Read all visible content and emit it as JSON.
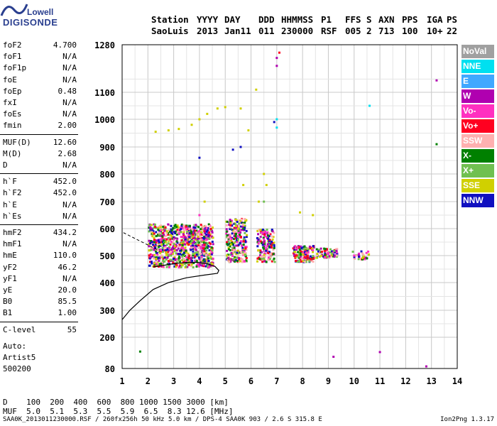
{
  "logo": {
    "line1": "Lowell",
    "line2": "DIGISONDE"
  },
  "header": {
    "labels": [
      "Station",
      "YYYY",
      "DAY",
      "DDD",
      "HHMMSS",
      "P1",
      "FFS",
      "S",
      "AXN",
      "PPS",
      "IGA",
      "PS"
    ],
    "values": [
      "SaoLuis",
      "2013",
      "Jan11",
      "011",
      "230000",
      "RSF",
      "005",
      "2",
      "713",
      "100",
      "10+",
      "22"
    ]
  },
  "params": [
    [
      {
        "k": "foF2",
        "v": "4.700"
      },
      {
        "k": "foF1",
        "v": "N/A"
      },
      {
        "k": "foF1p",
        "v": "N/A"
      },
      {
        "k": "foE",
        "v": "N/A"
      },
      {
        "k": "foEp",
        "v": "0.48"
      },
      {
        "k": "fxI",
        "v": "N/A"
      },
      {
        "k": "foEs",
        "v": "N/A"
      },
      {
        "k": "fmin",
        "v": "2.00"
      }
    ],
    [
      {
        "k": "MUF(D)",
        "v": "12.60"
      },
      {
        "k": "M(D)",
        "v": "2.68"
      },
      {
        "k": "D",
        "v": "N/A"
      }
    ],
    [
      {
        "k": "h`F",
        "v": "452.0"
      },
      {
        "k": "h`F2",
        "v": "452.0"
      },
      {
        "k": "h`E",
        "v": "N/A"
      },
      {
        "k": "h`Es",
        "v": "N/A"
      }
    ],
    [
      {
        "k": "hmF2",
        "v": "434.2"
      },
      {
        "k": "hmF1",
        "v": "N/A"
      },
      {
        "k": "hmE",
        "v": "110.0"
      },
      {
        "k": "yF2",
        "v": "46.2"
      },
      {
        "k": "yF1",
        "v": "N/A"
      },
      {
        "k": "yE",
        "v": "20.0"
      },
      {
        "k": "B0",
        "v": "85.5"
      },
      {
        "k": "B1",
        "v": "1.00"
      }
    ],
    [
      {
        "k": "C-level",
        "v": "55"
      }
    ]
  ],
  "auto": [
    "Auto:",
    "Artist5",
    "500200"
  ],
  "legend": [
    {
      "label": "NoVal",
      "color": "#a0a0a0"
    },
    {
      "label": "NNE",
      "color": "#00e0f0"
    },
    {
      "label": "E",
      "color": "#40a8ff"
    },
    {
      "label": "W",
      "color": "#b000b0"
    },
    {
      "label": "Vo-",
      "color": "#ff30c0"
    },
    {
      "label": "Vo+",
      "color": "#ff0020"
    },
    {
      "label": "SSW",
      "color": "#ffb0b0"
    },
    {
      "label": "X-",
      "color": "#008000"
    },
    {
      "label": "X+",
      "color": "#70c050"
    },
    {
      "label": "SSE",
      "color": "#d0d000"
    },
    {
      "label": "NNW",
      "color": "#1010c0"
    }
  ],
  "dmuf": {
    "d_label": "D",
    "d_values": [
      "100",
      "200",
      "400",
      "600",
      "800",
      "1000",
      "1500",
      "3000"
    ],
    "d_unit": "[km]",
    "muf_label": "MUF",
    "muf_values": [
      "5.0",
      "5.1",
      "5.3",
      "5.5",
      "5.9",
      "6.5",
      "8.3",
      "12.6"
    ],
    "muf_unit": "[MHz]"
  },
  "footer": "SAA0K_2013011230000.RSF / 260fx256h 50 kHz 5.0 km / DPS-4 SAA0K 903 / 2.6 S 315.8 E",
  "version": "Ion2Png 1.3.17",
  "chart_data": {
    "type": "scatter",
    "title": "",
    "xlabel": "",
    "ylabel": "",
    "xlim": [
      1,
      14
    ],
    "ylim": [
      80,
      1280
    ],
    "xticks": [
      "1",
      "2",
      "3",
      "4",
      "5",
      "6",
      "7",
      "8",
      "9",
      "10",
      "11",
      "12",
      "13",
      "14"
    ],
    "yticks": [
      "80",
      "200",
      "300",
      "400",
      "500",
      "600",
      "700",
      "800",
      "900",
      "1000",
      "1100",
      "1280"
    ],
    "grid": true,
    "legend_position": "right",
    "series": [
      {
        "name": "NNE",
        "color": "#00e0f0",
        "points": [
          [
            7.0,
            1000
          ],
          [
            7.0,
            970
          ],
          [
            10.6,
            1050
          ]
        ]
      },
      {
        "name": "W",
        "color": "#b000b0",
        "points": [
          [
            7.0,
            1200
          ],
          [
            7.0,
            1230
          ],
          [
            11.0,
            143
          ],
          [
            12.8,
            88
          ],
          [
            9.2,
            125
          ],
          [
            13.2,
            1145
          ]
        ]
      },
      {
        "name": "Vo-",
        "color": "#ff30c0",
        "points": [
          [
            2.5,
            520
          ],
          [
            3.0,
            560
          ],
          [
            3.5,
            600
          ],
          [
            4.0,
            650
          ],
          [
            4.3,
            560
          ],
          [
            6.5,
            560
          ],
          [
            7.8,
            530
          ],
          [
            8.4,
            520
          ],
          [
            9.0,
            510
          ],
          [
            10.0,
            500
          ]
        ]
      },
      {
        "name": "Vo+",
        "color": "#ff0020",
        "points": [
          [
            2.8,
            480
          ],
          [
            3.6,
            500
          ],
          [
            4.2,
            540
          ],
          [
            6.8,
            530
          ],
          [
            8.2,
            500
          ],
          [
            7.1,
            1250
          ]
        ]
      },
      {
        "name": "X-",
        "color": "#008000",
        "points": [
          [
            1.7,
            145
          ],
          [
            2.5,
            470
          ],
          [
            3.2,
            490
          ],
          [
            3.9,
            480
          ],
          [
            5.2,
            520
          ],
          [
            5.7,
            600
          ],
          [
            10.5,
            490
          ],
          [
            13.2,
            910
          ]
        ]
      },
      {
        "name": "X+",
        "color": "#70c050",
        "points": [
          [
            2.9,
            500
          ],
          [
            4.5,
            520
          ],
          [
            5.5,
            560
          ],
          [
            6.5,
            700
          ]
        ]
      },
      {
        "name": "SSE",
        "color": "#d0d000",
        "points": [
          [
            2.3,
            955
          ],
          [
            2.8,
            960
          ],
          [
            3.2,
            965
          ],
          [
            3.7,
            980
          ],
          [
            4.0,
            1000
          ],
          [
            4.3,
            1020
          ],
          [
            4.7,
            1040
          ],
          [
            5.0,
            1045
          ],
          [
            5.6,
            1040
          ],
          [
            5.5,
            600
          ],
          [
            5.2,
            620
          ],
          [
            6.5,
            800
          ],
          [
            6.6,
            760
          ],
          [
            6.3,
            700
          ],
          [
            7.9,
            660
          ],
          [
            8.4,
            650
          ],
          [
            5.7,
            760
          ],
          [
            4.2,
            700
          ],
          [
            5.9,
            960
          ],
          [
            6.2,
            1110
          ]
        ]
      },
      {
        "name": "NNW",
        "color": "#1010c0",
        "points": [
          [
            4.0,
            860
          ],
          [
            5.3,
            890
          ],
          [
            5.6,
            900
          ],
          [
            6.9,
            990
          ],
          [
            2.2,
            540
          ],
          [
            2.7,
            520
          ],
          [
            3.4,
            510
          ]
        ]
      }
    ],
    "trace": {
      "name": "profile",
      "points": [
        [
          1,
          265
        ],
        [
          1.3,
          300
        ],
        [
          1.7,
          335
        ],
        [
          2.2,
          375
        ],
        [
          2.8,
          400
        ],
        [
          3.5,
          418
        ],
        [
          4.2,
          428
        ],
        [
          4.7,
          434.2
        ],
        [
          4.75,
          445
        ],
        [
          4.6,
          460
        ],
        [
          4.3,
          470
        ],
        [
          3.9,
          475
        ],
        [
          3.5,
          475
        ],
        [
          3.0,
          470
        ],
        [
          2.5,
          462
        ],
        [
          2.2,
          458
        ]
      ]
    }
  }
}
